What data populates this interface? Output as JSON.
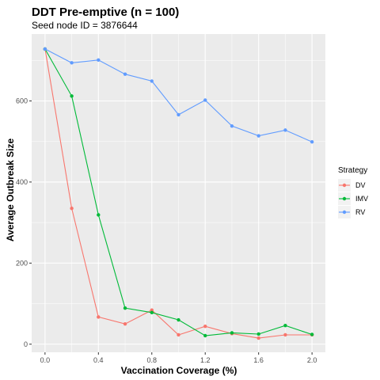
{
  "chart_data": {
    "type": "line",
    "title": "DDT Pre-emptive (n = 100)",
    "subtitle": "Seed node ID = 3876644",
    "xlabel": "Vaccination Coverage (%)",
    "ylabel": "Average Outbreak Size",
    "x": [
      0.0,
      0.2,
      0.4,
      0.6,
      0.8,
      1.0,
      1.2,
      1.4,
      1.6,
      1.8,
      2.0
    ],
    "x_ticks": [
      "0.0",
      "0.4",
      "0.8",
      "1.2",
      "1.6",
      "2.0"
    ],
    "y_ticks": [
      "0",
      "200",
      "400",
      "600"
    ],
    "xlim": [
      -0.1,
      2.1
    ],
    "ylim": [
      -20,
      765
    ],
    "grid": true,
    "legend_position": "right",
    "legend_title": "Strategy",
    "series": [
      {
        "name": "DV",
        "color": "#F8766D",
        "values": [
          728,
          335,
          67,
          50,
          84,
          23,
          44,
          26,
          15,
          23,
          23
        ]
      },
      {
        "name": "IMV",
        "color": "#00BA38",
        "values": [
          728,
          612,
          319,
          89,
          78,
          60,
          21,
          28,
          25,
          46,
          24
        ]
      },
      {
        "name": "RV",
        "color": "#619CFF",
        "values": [
          728,
          694,
          701,
          666,
          649,
          566,
          602,
          538,
          514,
          528,
          499
        ]
      }
    ]
  }
}
